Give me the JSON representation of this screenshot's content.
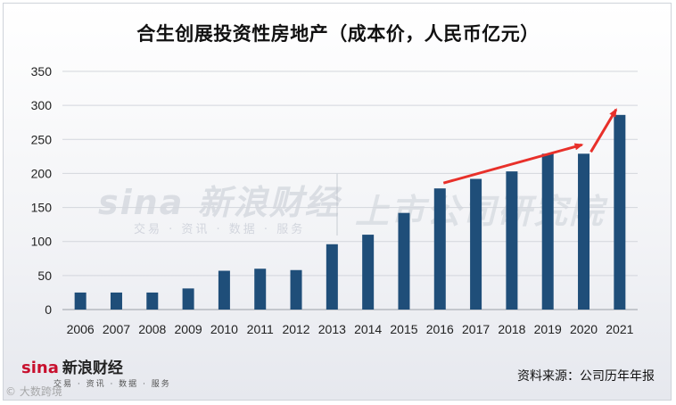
{
  "chart_data": {
    "type": "bar",
    "title": "合生创展投资性房地产（成本价，人民币亿元）",
    "categories": [
      "2006",
      "2007",
      "2008",
      "2009",
      "2010",
      "2011",
      "2012",
      "2013",
      "2014",
      "2015",
      "2016",
      "2017",
      "2018",
      "2019",
      "2020",
      "2021"
    ],
    "values": [
      25,
      25,
      25,
      31,
      57,
      60,
      58,
      96,
      110,
      142,
      178,
      192,
      203,
      229,
      229,
      286
    ],
    "ylim": [
      0,
      350
    ],
    "yticks": [
      0,
      50,
      100,
      150,
      200,
      250,
      300,
      350
    ],
    "xlabel": "",
    "ylabel": "",
    "grid": true,
    "bar_color": "#1f4e79",
    "annotation": {
      "type": "trend-arrows",
      "color": "#e8302a",
      "segments": [
        [
          "2016",
          "2020"
        ],
        [
          "2020",
          "2021"
        ]
      ]
    }
  },
  "watermark": {
    "left": "sina 新浪财经",
    "left_sub": "交易 · 资讯 · 数据 · 服务",
    "right": "上市公司研究院"
  },
  "footer": {
    "logo_en": "sina",
    "logo_cn": "新浪财经",
    "logo_sub": "交易 · 资讯 · 数据 · 服务",
    "copyright": "© 大数跨境",
    "source": "资料来源：公司历年年报"
  }
}
